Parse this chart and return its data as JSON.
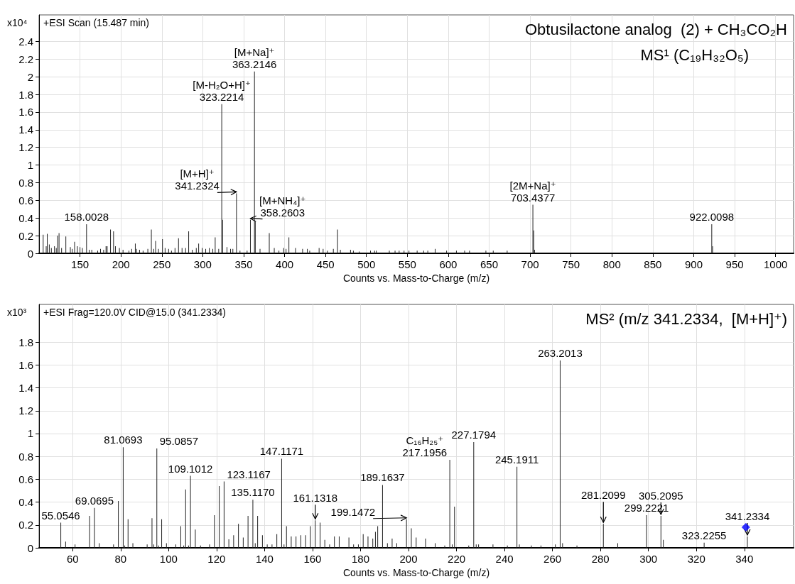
{
  "chart_data": [
    {
      "type": "bar",
      "title": "Obtusilactone analog  (2) + CH₃CO₂H",
      "subtitle": "MS¹ (C₁₉H₃₂O₅)",
      "xlabel": "Counts vs. Mass-to-Charge (m/z)",
      "ylabel": "x10⁴",
      "xlim": [
        100,
        1022
      ],
      "ylim": [
        0,
        2.7
      ],
      "grid": true,
      "xticks": [
        150,
        200,
        250,
        300,
        350,
        400,
        450,
        500,
        550,
        600,
        650,
        700,
        750,
        800,
        850,
        900,
        950,
        1000
      ],
      "yticks": [
        0,
        0.2,
        0.4,
        0.6,
        0.8,
        1,
        1.2,
        1.4,
        1.6,
        1.8,
        2,
        2.2,
        2.4
      ],
      "series": [
        {
          "color": "#222222",
          "x": [
            105,
            108.7,
            110,
            112.5,
            115,
            118.8,
            121,
            122.6,
            124.4,
            127.5,
            132.7,
            138.2,
            140.5,
            143.4,
            146.8,
            150,
            152.9,
            158.0028,
            161.3,
            164.4,
            171.6,
            175.1,
            178.9,
            181.8,
            183.2,
            187.3,
            191,
            193.3,
            198.2,
            202.6,
            209.8,
            213.2,
            217.6,
            219,
            222.8,
            227.1,
            232.9,
            237.2,
            240.1,
            242.4,
            245.9,
            250.8,
            254,
            258.3,
            261.8,
            266.1,
            270.4,
            274.7,
            279.1,
            282.8,
            287.2,
            292.1,
            295,
            299.3,
            303.6,
            308,
            312.3,
            315.2,
            319.5,
            323.2214,
            324.2247,
            329.6,
            334,
            336.8,
            341.2324,
            345.5,
            354.2,
            358.2603,
            363.2146,
            364.218,
            370,
            381.3,
            387.4,
            393.1,
            398.9,
            401.8,
            405.3,
            413.4,
            422,
            427.8,
            430.7,
            442.2,
            447.1,
            452.3,
            459.6,
            464.7,
            468.2,
            480.6,
            484.1,
            491.3,
            505,
            510,
            512,
            528,
            535,
            540,
            546,
            552,
            562,
            570,
            575,
            584,
            598,
            610,
            620,
            626,
            646,
            655,
            672,
            703.4377,
            704.44,
            705.44,
            922.0098,
            923.01
          ],
          "values": [
            0.21,
            0.08,
            0.22,
            0.1,
            0.06,
            0.08,
            0.06,
            0.2,
            0.23,
            0.06,
            0.19,
            0.07,
            0.05,
            0.13,
            0.08,
            0.07,
            0.06,
            0.33,
            0.04,
            0.04,
            0.03,
            0.05,
            0.04,
            0.08,
            0.08,
            0.27,
            0.25,
            0.08,
            0.06,
            0.04,
            0.03,
            0.05,
            0.11,
            0.05,
            0.04,
            0.03,
            0.05,
            0.27,
            0.05,
            0.14,
            0.05,
            0.16,
            0.06,
            0.05,
            0.03,
            0.06,
            0.17,
            0.06,
            0.06,
            0.25,
            0.04,
            0.06,
            0.11,
            0.06,
            0.05,
            0.06,
            0.05,
            0.18,
            0.05,
            1.69,
            0.38,
            0.07,
            0.05,
            0.05,
            0.68,
            0.03,
            0.03,
            0.38,
            2.06,
            0.36,
            0.05,
            0.23,
            0.06,
            0.03,
            0.06,
            0.05,
            0.18,
            0.06,
            0.05,
            0.05,
            0.03,
            0.06,
            0.05,
            0.03,
            0.05,
            0.27,
            0.04,
            0.04,
            0.03,
            0.02,
            0.03,
            0.03,
            0.03,
            0.03,
            0.03,
            0.03,
            0.03,
            0.03,
            0.03,
            0.03,
            0.03,
            0.05,
            0.03,
            0.03,
            0.03,
            0.03,
            0.03,
            0.03,
            0.03,
            0.55,
            0.26,
            0.04,
            0.33,
            0.08
          ]
        }
      ],
      "annotations": [
        "+ESI Scan (15.487 min)",
        {
          "text": "363.2146",
          "x": 363.2146,
          "y": 2.06
        },
        {
          "text": "[M+Na]⁺",
          "x": 363.2146,
          "y": 2.06
        },
        {
          "text": "323.2214",
          "x": 323.2214,
          "y": 1.69
        },
        {
          "text": "[M-H₂O+H]⁺",
          "x": 323.2214,
          "y": 1.69
        },
        {
          "text": "341.2324",
          "x": 341.2324,
          "y": 0.68
        },
        {
          "text": "[M+H]⁺",
          "x": 341.2324,
          "y": 0.68
        },
        {
          "text": "358.2603",
          "x": 358.2603,
          "y": 0.38
        },
        {
          "text": "[M+NH₄]⁺",
          "x": 358.2603,
          "y": 0.38
        },
        {
          "text": "158.0028",
          "x": 158.0028,
          "y": 0.33
        },
        {
          "text": "703.4377",
          "x": 703.4377,
          "y": 0.55
        },
        {
          "text": "[2M+Na]⁺",
          "x": 703.4377,
          "y": 0.55
        },
        {
          "text": "922.0098",
          "x": 922.0098,
          "y": 0.33
        }
      ]
    },
    {
      "type": "bar",
      "title": "MS² (m/z 341.2334,  [M+H]⁺)",
      "xlabel": "Counts vs. Mass-to-Charge (m/z)",
      "ylabel": "x10³",
      "xlim": [
        46,
        360.5
      ],
      "ylim": [
        0,
        2.13
      ],
      "grid": true,
      "xticks": [
        60,
        80,
        100,
        120,
        140,
        160,
        180,
        200,
        220,
        240,
        260,
        280,
        300,
        320,
        340
      ],
      "yticks": [
        0,
        0.2,
        0.4,
        0.6,
        0.8,
        1,
        1.2,
        1.4,
        1.6,
        1.8
      ],
      "series": [
        {
          "color": "#222222",
          "x": [
            55.0546,
            57.07,
            61.0,
            67.05,
            69.0695,
            71.09,
            77.04,
            79.05,
            81.0693,
            81.7,
            83.09,
            85.1,
            91.05,
            93.07,
            93.8,
            95.0857,
            95.8,
            97.1,
            99.1,
            103.0,
            105.07,
            106.3,
            107.09,
            108.3,
            109.1012,
            111.12,
            113.3,
            117.07,
            119.09,
            121.1,
            123.1167,
            125.1,
            127.1,
            129.1,
            131.1,
            133.1,
            135.117,
            136.1,
            137.1,
            139.1,
            141.1,
            143.1,
            145.1,
            147.1171,
            148.1,
            149.13,
            151.1,
            153.1,
            155.1,
            157.1,
            159.1,
            161.1318,
            163.15,
            165.1,
            167.1,
            169.1,
            171.1,
            175.15,
            177.1,
            179.1,
            181.1,
            183.1,
            185.1,
            186.2,
            187.15,
            189.1637,
            191.2,
            193.16,
            195.1,
            199.1472,
            201.16,
            203.18,
            207.1,
            211.1,
            215.1,
            217.1956,
            218.2,
            219.17,
            225.1,
            227.1794,
            228.2,
            229.2,
            235.2,
            241.2,
            245.1911,
            246.2,
            251.2,
            255.2,
            261.2,
            263.2013,
            264.2,
            270.2,
            281.2099,
            287.2,
            299.2221,
            305.2095,
            306.2,
            323.2255,
            341.2334
          ],
          "values": [
            0.22,
            0.055,
            0.03,
            0.28,
            0.35,
            0.04,
            0.03,
            0.41,
            0.88,
            0.02,
            0.25,
            0.04,
            0.03,
            0.26,
            0.03,
            0.87,
            0.02,
            0.25,
            0.04,
            0.03,
            0.19,
            0.02,
            0.51,
            0.02,
            0.63,
            0.16,
            0.02,
            0.03,
            0.285,
            0.54,
            0.58,
            0.075,
            0.11,
            0.21,
            0.09,
            0.28,
            0.42,
            0.04,
            0.28,
            0.11,
            0.03,
            0.03,
            0.12,
            0.78,
            0.03,
            0.19,
            0.1,
            0.1,
            0.11,
            0.11,
            0.19,
            0.24,
            0.22,
            0.07,
            0.03,
            0.1,
            0.1,
            0.09,
            0.03,
            0.03,
            0.12,
            0.1,
            0.08,
            0.14,
            0.19,
            0.55,
            0.04,
            0.08,
            0.04,
            0.25,
            0.17,
            0.09,
            0.08,
            0.04,
            0.02,
            0.77,
            0.03,
            0.36,
            0.02,
            0.925,
            0.03,
            0.03,
            0.03,
            0.02,
            0.71,
            0.03,
            0.02,
            0.02,
            0.03,
            1.64,
            0.04,
            0.02,
            0.21,
            0.04,
            0.285,
            0.28,
            0.07,
            0.045,
            0.1
          ]
        },
        {
          "type": "scatter",
          "marker": "diamond",
          "color": "#0000ff",
          "x": [
            340.6
          ],
          "values": [
            0.18
          ]
        }
      ],
      "annotations": [
        "+ESI Frag=120.0V CID@15.0 (341.2334)",
        {
          "text": "55.0546",
          "x": 55.0546,
          "y": 0.22
        },
        {
          "text": "69.0695",
          "x": 69.0695,
          "y": 0.35
        },
        {
          "text": "81.0693",
          "x": 81.0693,
          "y": 0.88
        },
        {
          "text": "95.0857",
          "x": 95.0857,
          "y": 0.87
        },
        {
          "text": "109.1012",
          "x": 109.1012,
          "y": 0.63
        },
        {
          "text": "123.1167",
          "x": 123.1167,
          "y": 0.58
        },
        {
          "text": "135.1170",
          "x": 135.117,
          "y": 0.42
        },
        {
          "text": "147.1171",
          "x": 147.1171,
          "y": 0.78
        },
        {
          "text": "161.1318",
          "x": 161.1318,
          "y": 0.24
        },
        {
          "text": "189.1637",
          "x": 189.1637,
          "y": 0.55
        },
        {
          "text": "199.1472",
          "x": 199.1472,
          "y": 0.25
        },
        {
          "text": "217.1956",
          "x": 217.1956,
          "y": 0.77
        },
        {
          "text": "C₁₆H₂₅⁺",
          "x": 217.1956,
          "y": 0.77
        },
        {
          "text": "227.1794",
          "x": 227.1794,
          "y": 0.925
        },
        {
          "text": "245.1911",
          "x": 245.1911,
          "y": 0.71
        },
        {
          "text": "263.2013",
          "x": 263.2013,
          "y": 1.64
        },
        {
          "text": "281.2099",
          "x": 281.2099,
          "y": 0.21
        },
        {
          "text": "299.2221",
          "x": 299.2221,
          "y": 0.285
        },
        {
          "text": "305.2095",
          "x": 305.2095,
          "y": 0.28
        },
        {
          "text": "341.2334",
          "x": 341.2334,
          "y": 0.1
        },
        {
          "text": "323.2255",
          "x": 323.2255,
          "y": 0.045
        }
      ]
    }
  ]
}
